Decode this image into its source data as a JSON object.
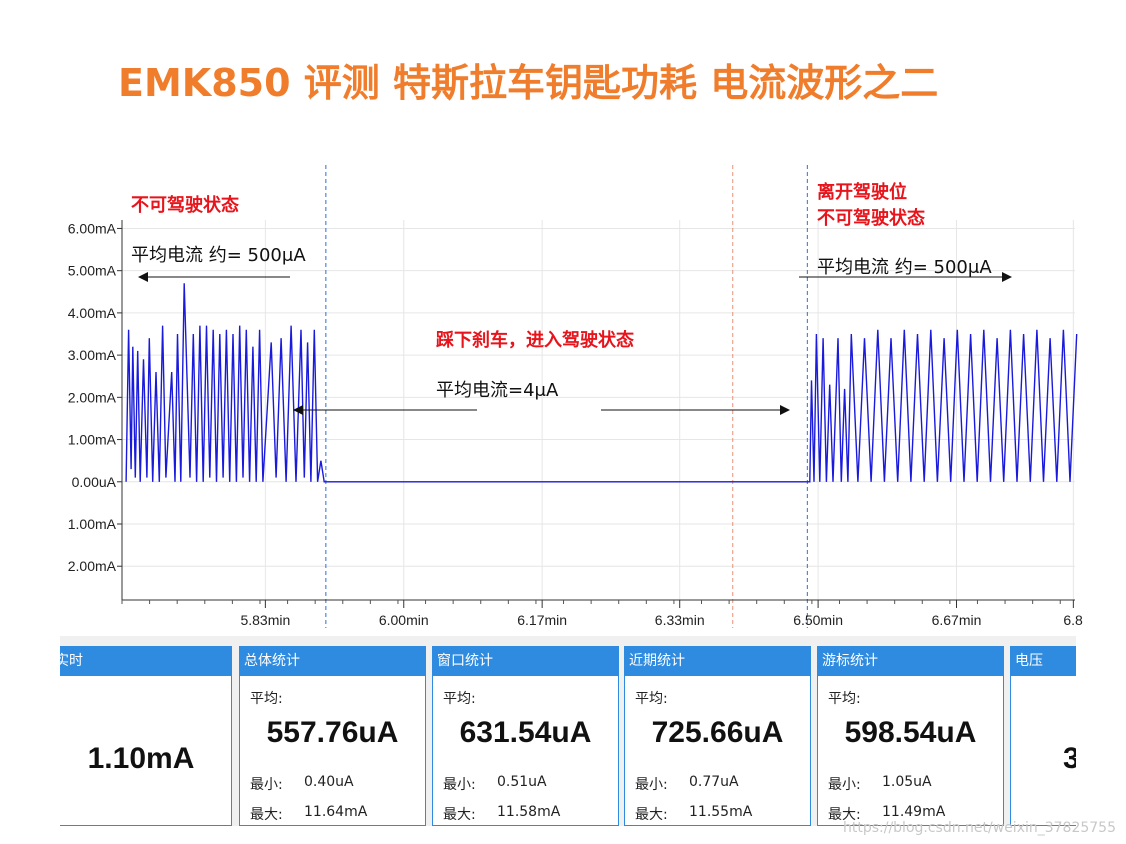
{
  "title": "EMK850 评测 特斯拉车钥匙功耗 电流波形之二",
  "annotations": {
    "left_state": "不可驾驶状态",
    "left_avg": "平均电流 约= 500μA",
    "mid_state": "踩下刹车，进入驾驶状态",
    "mid_avg": "平均电流=4μA",
    "right_state_1": "离开驾驶位",
    "right_state_2": "不可驾驶状态",
    "right_avg": "平均电流 约= 500μA"
  },
  "chart_data": {
    "type": "line",
    "series": [
      {
        "color": "#1a1adc",
        "x": [
          5.665,
          5.668,
          5.671,
          5.673,
          5.676,
          5.679,
          5.682,
          5.686,
          5.69,
          5.693,
          5.697,
          5.701,
          5.705,
          5.709,
          5.713,
          5.72,
          5.724,
          5.727,
          5.731,
          5.735,
          5.742,
          5.746,
          5.75,
          5.754,
          5.758,
          5.762,
          5.766,
          5.77,
          5.774,
          5.778,
          5.782,
          5.786,
          5.79,
          5.794,
          5.798,
          5.802,
          5.806,
          5.81,
          5.814,
          5.818,
          5.822,
          5.826,
          5.83,
          5.84,
          5.846,
          5.852,
          5.858,
          5.864,
          5.87,
          5.876,
          5.88,
          5.884,
          5.888,
          5.892,
          5.896,
          5.9,
          5.904,
          5.908,
          6.49,
          6.492,
          6.495,
          6.498,
          6.502,
          6.506,
          6.51,
          6.514,
          6.518,
          6.524,
          6.528,
          6.532,
          6.536,
          6.54,
          6.548,
          6.556,
          6.564,
          6.572,
          6.58,
          6.588,
          6.596,
          6.604,
          6.612,
          6.62,
          6.628,
          6.636,
          6.644,
          6.652,
          6.66,
          6.668,
          6.676,
          6.684,
          6.692,
          6.7,
          6.708,
          6.716,
          6.724,
          6.732,
          6.74,
          6.748,
          6.756,
          6.764,
          6.772,
          6.78,
          6.788,
          6.796,
          6.804,
          6.812
        ],
        "y": [
          0.0,
          3.6,
          0.3,
          3.2,
          0.1,
          3.1,
          0.0,
          2.9,
          0.1,
          3.4,
          0.0,
          2.6,
          0.0,
          3.7,
          0.1,
          2.6,
          0.0,
          3.5,
          0.0,
          4.7,
          0.1,
          3.5,
          0.0,
          3.7,
          0.0,
          3.7,
          0.1,
          3.6,
          0.0,
          3.5,
          0.1,
          3.6,
          0.0,
          3.5,
          0.0,
          3.7,
          0.1,
          3.6,
          0.0,
          3.2,
          0.0,
          3.6,
          0.0,
          3.3,
          0.1,
          3.4,
          0.0,
          3.7,
          0.0,
          3.6,
          0.1,
          3.3,
          0.0,
          3.6,
          0.0,
          0.5,
          0.0,
          0.0,
          0.0,
          2.4,
          0.0,
          3.5,
          0.0,
          3.4,
          0.0,
          2.3,
          0.0,
          3.4,
          0.0,
          2.2,
          0.0,
          3.5,
          0.0,
          3.4,
          0.0,
          3.6,
          0.0,
          3.4,
          0.0,
          3.6,
          0.0,
          3.5,
          0.0,
          3.6,
          0.0,
          3.4,
          0.0,
          3.6,
          0.0,
          3.5,
          0.0,
          3.6,
          0.0,
          3.4,
          0.0,
          3.6,
          0.0,
          3.5,
          0.0,
          3.6,
          0.0,
          3.4,
          0.0,
          3.6,
          0.0,
          3.5
        ]
      }
    ],
    "xunit": "min",
    "yunit": "mA",
    "xlim": [
      5.66,
      6.81
    ],
    "ylim": [
      -2.8,
      6.2
    ],
    "x_ticks": [
      "5.83min",
      "6.00min",
      "6.17min",
      "6.33min",
      "6.50min",
      "6.67min",
      "6.8"
    ],
    "x_tick_values": [
      5.833,
      6.0,
      6.167,
      6.333,
      6.5,
      6.667,
      6.808
    ],
    "y_ticks": [
      "6.00mA",
      "5.00mA",
      "4.00mA",
      "3.00mA",
      "2.00mA",
      "1.00mA",
      "0.00uA",
      "1.00mA",
      "2.00mA"
    ],
    "y_tick_values": [
      6,
      5,
      4,
      3,
      2,
      1,
      0,
      -1,
      -2
    ],
    "markers": [
      {
        "x": 5.906,
        "style": "dashed",
        "color": "#2e6fd8"
      },
      {
        "x": 6.487,
        "style": "dashed",
        "color": "#2e6fd8"
      },
      {
        "x": 6.397,
        "style": "dashed",
        "color": "#e89078"
      }
    ],
    "grid": true
  },
  "stats": {
    "panels": [
      {
        "header": "实时",
        "big": "1.10mA"
      },
      {
        "header": "总体统计",
        "avg_label": "平均:",
        "big": "557.76uA",
        "min_label": "最小:",
        "min": "0.40uA",
        "max_label": "最大:",
        "max": "11.64mA"
      },
      {
        "header": "窗口统计",
        "avg_label": "平均:",
        "big": "631.54uA",
        "min_label": "最小:",
        "min": "0.51uA",
        "max_label": "最大:",
        "max": "11.58mA"
      },
      {
        "header": "近期统计",
        "avg_label": "平均:",
        "big": "725.66uA",
        "min_label": "最小:",
        "min": "0.77uA",
        "max_label": "最大:",
        "max": "11.55mA"
      },
      {
        "header": "游标统计",
        "avg_label": "平均:",
        "big": "598.54uA",
        "min_label": "最小:",
        "min": "1.05uA",
        "max_label": "最大:",
        "max": "11.49mA"
      },
      {
        "header": "电压",
        "big": "3"
      }
    ]
  },
  "watermark": "https://blog.csdn.net/weixin_37825755"
}
